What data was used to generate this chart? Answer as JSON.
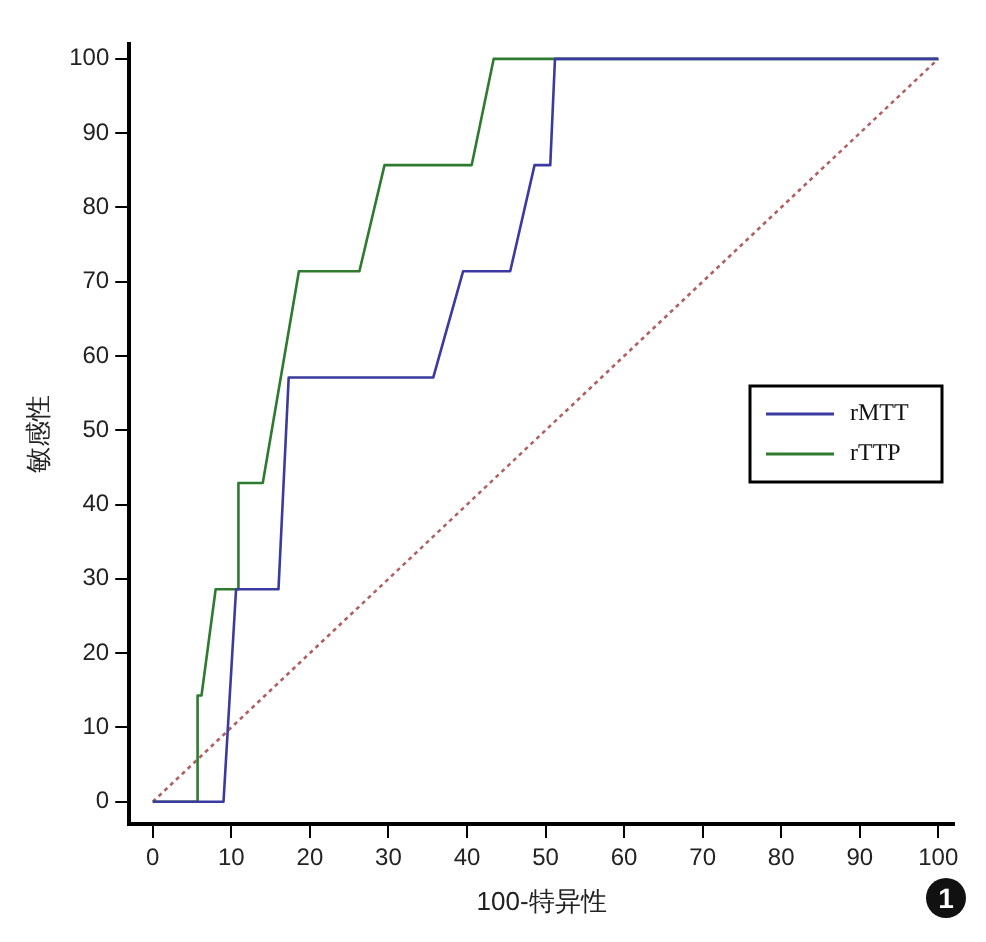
{
  "chart_data": {
    "type": "line",
    "xlabel": "100-特异性",
    "ylabel": "敏感性",
    "xlim": [
      -3,
      102
    ],
    "ylim": [
      -3,
      102
    ],
    "xticks": [
      0,
      10,
      20,
      30,
      40,
      50,
      60,
      70,
      80,
      90,
      100
    ],
    "yticks": [
      0,
      10,
      20,
      30,
      40,
      50,
      60,
      70,
      80,
      90,
      100
    ],
    "grid": false,
    "legend": "right",
    "marker": "none",
    "annotations": [
      "1"
    ],
    "series": [
      {
        "name": "rMTT",
        "color": "#3a3aa0",
        "x": [
          0,
          9,
          10.6,
          16,
          17.3,
          35.7,
          39.5,
          45.5,
          48.6,
          50.6,
          51.2,
          100
        ],
        "values": [
          0,
          0,
          28.6,
          28.6,
          57.1,
          57.1,
          71.4,
          71.4,
          85.7,
          85.7,
          100,
          100
        ]
      },
      {
        "name": "rTTP",
        "color": "#2e7a2e",
        "x": [
          0,
          5.7,
          5.7,
          6.2,
          8,
          10.9,
          10.9,
          14,
          18.6,
          26.3,
          29.5,
          40.6,
          43.4,
          100
        ],
        "values": [
          0,
          0,
          14.3,
          14.3,
          28.6,
          28.6,
          42.9,
          42.9,
          71.4,
          71.4,
          85.7,
          85.7,
          100,
          100
        ]
      },
      {
        "color": "#b06060",
        "line_style": "dotted",
        "x": [
          0,
          100
        ],
        "values": [
          0,
          100
        ]
      }
    ]
  }
}
